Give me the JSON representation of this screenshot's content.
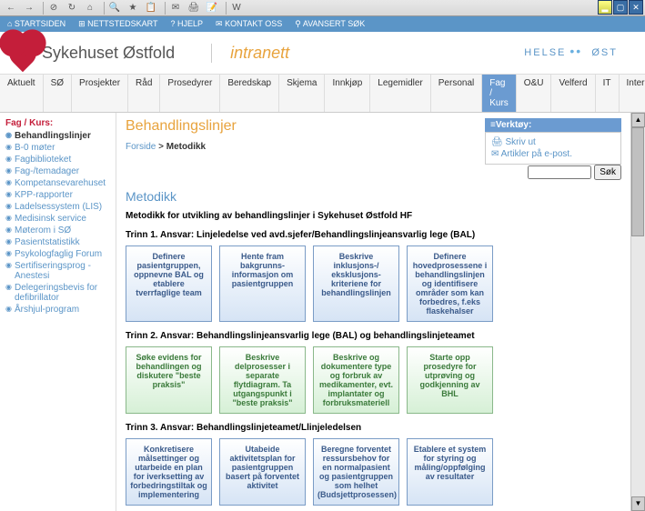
{
  "topnav": [
    "⌂ STARTSIDEN",
    "⊞ NETTSTEDSKART",
    "? HJELP",
    "✉ KONTAKT OSS",
    "⚲ AVANSERT SØK"
  ],
  "site_title": "Sykehuset Østfold",
  "intranett": "intranett",
  "helse": "HELSE",
  "ost": "ØST",
  "tabs": [
    "Aktuelt",
    "SØ",
    "Prosjekter",
    "Råd",
    "Prosedyrer",
    "Beredskap",
    "Skjema",
    "Innkjøp",
    "Legemidler",
    "Personal",
    "Fag / Kurs",
    "O&U",
    "Velferd",
    "IT",
    "Internett"
  ],
  "active_tab": 10,
  "sidebar_header": "Fag / Kurs:",
  "sidebar": [
    {
      "label": "Behandlingslinjer",
      "active": true
    },
    {
      "label": "B-0 møter"
    },
    {
      "label": "Fagbiblioteket"
    },
    {
      "label": "Fag-/temadager"
    },
    {
      "label": "Kompetansevarehuset"
    },
    {
      "label": "KPP-rapporter"
    },
    {
      "label": "Ladelsessystem (LIS)"
    },
    {
      "label": "Medisinsk service"
    },
    {
      "label": "Møterom i SØ"
    },
    {
      "label": "Pasientstatistikk"
    },
    {
      "label": "Psykologfaglig Forum"
    },
    {
      "label": "Sertifiseringsprog - Anestesi"
    },
    {
      "label": "Delegeringsbevis for defibrillator"
    },
    {
      "label": "Årshjul-program"
    }
  ],
  "page_title": "Behandlingslinjer",
  "breadcrumb": {
    "root": "Forside",
    "sep": ">",
    "current": "Metodikk"
  },
  "search_btn": "Søk",
  "section_title": "Metodikk",
  "intro": "Metodikk for utvikling av behandlingslinjer i Sykehuset Østfold HF",
  "steps": [
    {
      "title": "Trinn 1.  Ansvar: Linjeledelse ved avd.sjefer/Behandlingslinjeansvarlig lege (BAL)",
      "color": "blue",
      "boxes": [
        "Definere pasientgruppen, oppnevne BAL og etablere tverrfaglige team",
        "Hente fram bakgrunns-informasjon om pasientgruppen",
        "Beskrive inklusjons-/ eksklusjons-kriteriene for behandlingslinjen",
        "Definere hovedprosessene i behandlingslinjen og identifisere områder som kan forbedres, f.eks flaskehalser"
      ]
    },
    {
      "title": "Trinn 2.  Ansvar: Behandlingslinjeansvarlig lege (BAL) og behandlingslinjeteamet",
      "color": "green",
      "boxes": [
        "Søke evidens for behandlingen og diskutere \"beste praksis\"",
        "Beskrive delprosesser i separate flytdiagram. Ta utgangspunkt i \"beste praksis\"",
        "Beskrive og dokumentere type og forbruk av medikamenter, evt. implantater og forbruksmateriell",
        "Starte opp prosedyre for utprøving og godkjenning av BHL"
      ]
    },
    {
      "title": "Trinn 3. Ansvar: Behandlingslinjeteamet/Llinjeledelsen",
      "color": "blue",
      "boxes": [
        "Konkretisere målsettinger og utarbeide en plan for iverksetting av forbedringstiltak og implementering",
        "Utabeide aktivitetsplan for pasientgruppen basert på forventet aktivitet",
        "Beregne forventet ressursbehov for en normalpasient og pasientgruppen som helhet (Budsjettprosessen)",
        "Etablere et system for styring og måling/oppfølging av resultater"
      ]
    }
  ],
  "tools": {
    "header": "≡Verktøy:",
    "items": [
      "🖨 Skriv ut",
      "✉ Artikler på e-post."
    ]
  }
}
